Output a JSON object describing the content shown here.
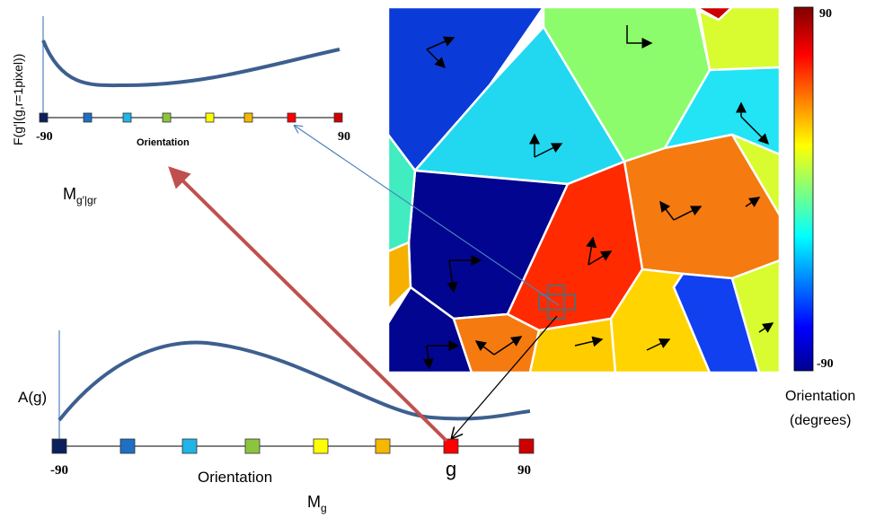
{
  "top_plot": {
    "y_label": "F(g′|(g,r=1pixel))",
    "x_min": -90,
    "x_max": 90,
    "x_label": "Orientation",
    "name": {
      "base": "M",
      "sub": "g′|gr"
    }
  },
  "bottom_plot": {
    "y_label": "A(g)",
    "x_min": -90,
    "x_max": 90,
    "x_label": "Orientation",
    "marker": "g",
    "name": {
      "base": "M",
      "sub": "g"
    }
  },
  "colorbar": {
    "max": 90,
    "min": -90,
    "label": [
      "Orientation",
      "(degrees)"
    ]
  }
}
